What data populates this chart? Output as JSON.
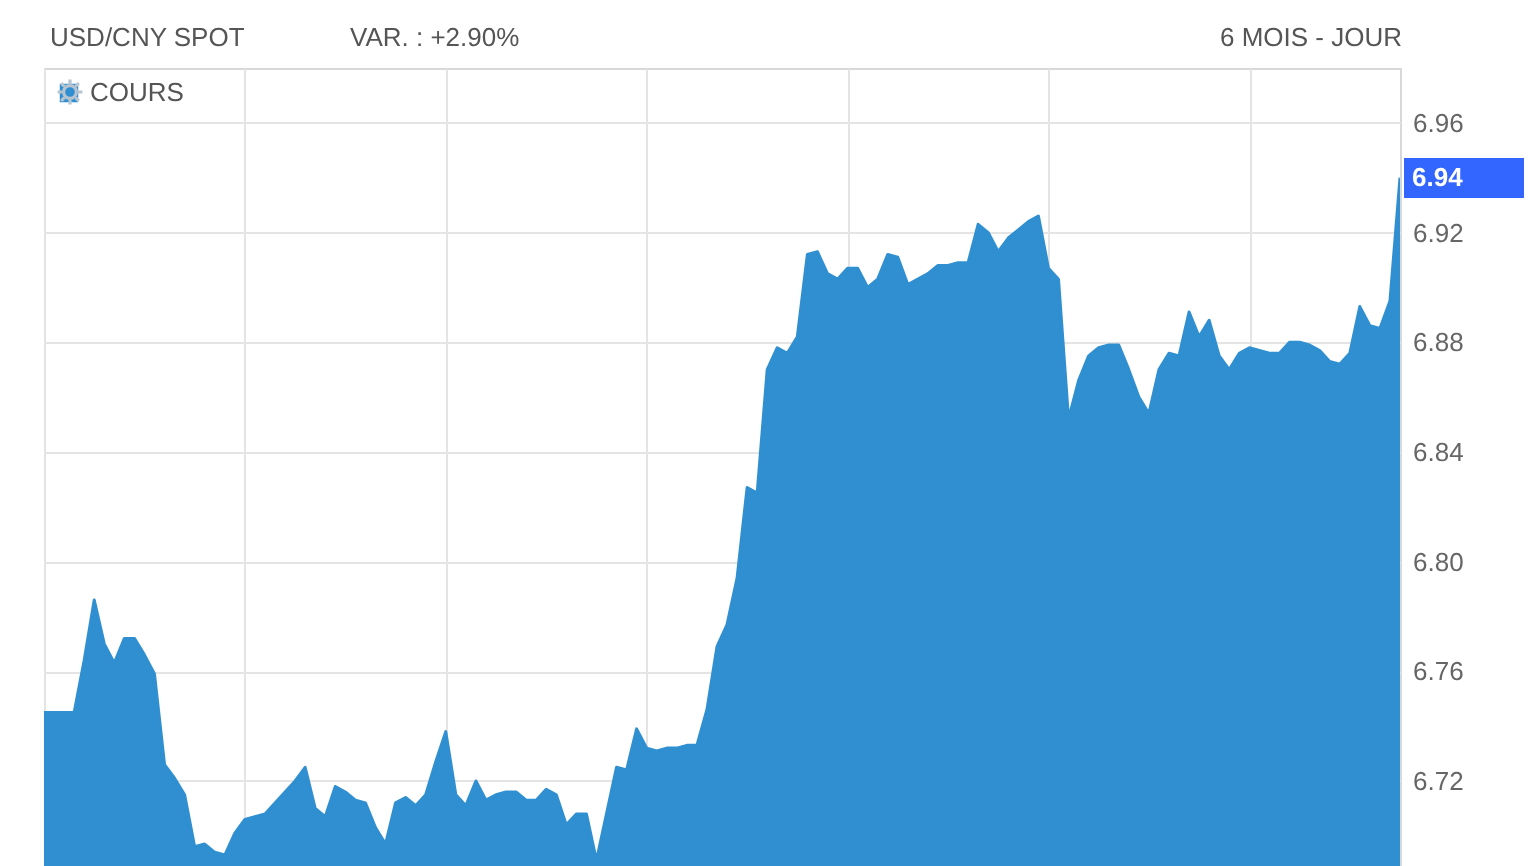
{
  "chart_data": {
    "type": "area",
    "title": "USD/CNY SPOT",
    "subtitle": "VAR. : +2.90%",
    "annotations": [
      "6 MOIS - JOUR",
      "6.94"
    ],
    "categories": [
      null,
      null,
      null,
      null,
      null,
      null,
      null,
      null,
      null,
      null,
      null,
      null,
      null,
      null,
      null,
      null,
      null,
      null,
      null,
      null,
      null,
      null,
      null,
      null,
      null,
      null,
      null,
      null,
      null,
      null,
      null,
      null,
      null,
      null,
      null,
      null,
      null,
      null,
      null,
      null,
      null,
      null,
      null,
      null,
      null,
      null,
      null,
      null,
      null,
      null,
      null,
      null,
      null,
      null,
      null,
      null,
      null,
      null,
      null,
      null,
      null,
      null,
      null,
      null,
      null,
      null,
      null,
      null,
      null,
      null,
      null,
      null,
      null,
      null,
      null,
      null,
      null,
      null,
      null,
      null,
      null,
      null,
      null,
      null,
      null,
      null,
      null,
      null,
      null,
      null,
      null,
      null,
      null,
      null,
      null,
      null,
      null,
      null,
      null,
      null,
      null,
      null,
      null,
      null,
      null,
      null,
      null,
      null,
      null,
      null,
      null,
      null,
      null,
      null,
      null,
      null,
      null,
      null,
      null,
      null,
      null,
      null,
      null,
      null,
      null,
      null,
      null,
      null,
      null,
      null,
      null,
      null,
      null,
      null,
      null,
      null
    ],
    "series": [
      {
        "name": "COURS",
        "color": "#2f8fd0",
        "values": [
          6.745,
          6.745,
          6.745,
          6.745,
          6.764,
          6.786,
          6.77,
          6.763,
          6.772,
          6.772,
          6.766,
          6.759,
          6.726,
          6.721,
          6.715,
          6.696,
          6.697,
          6.694,
          6.693,
          6.701,
          6.706,
          6.707,
          6.708,
          6.712,
          6.716,
          6.72,
          6.725,
          6.71,
          6.707,
          6.718,
          6.716,
          6.713,
          6.712,
          6.703,
          6.697,
          6.712,
          6.714,
          6.711,
          6.715,
          6.727,
          6.738,
          6.715,
          6.711,
          6.72,
          6.713,
          6.715,
          6.716,
          6.716,
          6.713,
          6.713,
          6.717,
          6.715,
          6.704,
          6.708,
          6.708,
          6.691,
          6.708,
          6.725,
          6.724,
          6.739,
          6.732,
          6.731,
          6.732,
          6.732,
          6.733,
          6.733,
          6.746,
          6.769,
          6.777,
          6.794,
          6.827,
          6.825,
          6.87,
          6.878,
          6.876,
          6.882,
          6.912,
          6.913,
          6.905,
          6.903,
          6.907,
          6.907,
          6.9,
          6.903,
          6.912,
          6.911,
          6.901,
          6.903,
          6.905,
          6.908,
          6.908,
          6.909,
          6.909,
          6.923,
          6.92,
          6.913,
          6.918,
          6.921,
          6.924,
          6.926,
          6.907,
          6.903,
          6.852,
          6.866,
          6.875,
          6.878,
          6.879,
          6.879,
          6.87,
          6.86,
          6.854,
          6.87,
          6.876,
          6.875,
          6.891,
          6.882,
          6.888,
          6.875,
          6.87,
          6.876,
          6.878,
          6.877,
          6.876,
          6.876,
          6.88,
          6.88,
          6.879,
          6.877,
          6.873,
          6.872,
          6.876,
          6.893,
          6.886,
          6.885,
          6.895,
          6.94
        ]
      }
    ],
    "ylim": [
      6.689,
      6.98
    ],
    "yticks": [
      6.72,
      6.76,
      {
        "value": 6.8,
        "label": "6.80"
      },
      6.84,
      6.88,
      6.92,
      6.96
    ],
    "grid": true,
    "legend": "top left",
    "tick_labels": "y"
  }
}
